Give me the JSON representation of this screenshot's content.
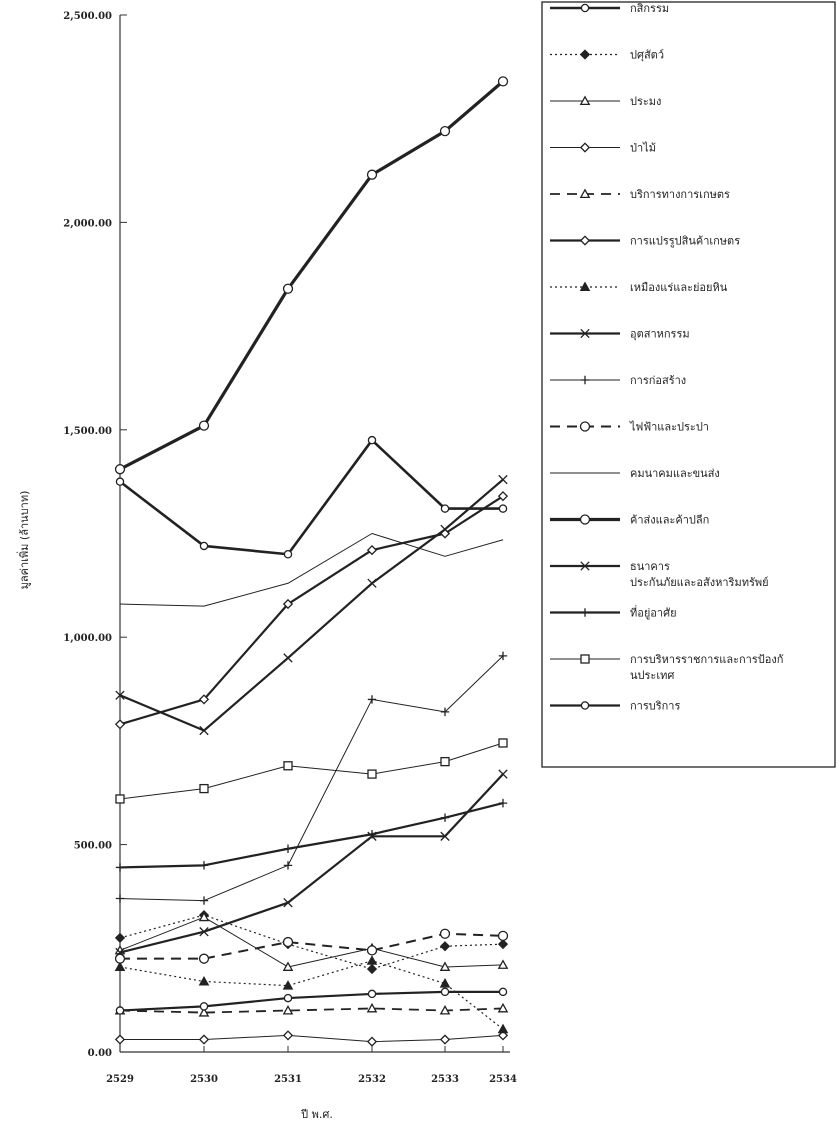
{
  "chart_data": {
    "type": "line",
    "xlabel": "ปี พ.ศ.",
    "ylabel": "มูลค่าเพิ่ม (ล้านบาท)",
    "x": [
      "2529",
      "2530",
      "2531",
      "2532",
      "2533",
      "2534"
    ],
    "ylim": [
      0,
      2500
    ],
    "y_ticks": [
      "0.00",
      "500.00",
      "1,000.00",
      "1,500.00",
      "2,000.00",
      "2,500.00"
    ],
    "grid": false,
    "legend_position": "right",
    "series": [
      {
        "name": "กสิกรรม",
        "marker": "circle-small",
        "dash": "solid",
        "width": 2.6,
        "values": [
          1375,
          1220,
          1200,
          1475,
          1310,
          1310
        ]
      },
      {
        "name": "ปศุสัตว์",
        "marker": "diamond",
        "dash": "dotted",
        "width": 1.2,
        "values": [
          275,
          330,
          260,
          200,
          255,
          260
        ]
      },
      {
        "name": "ประมง",
        "marker": "triangle-open",
        "dash": "solid",
        "width": 1.0,
        "values": [
          245,
          325,
          205,
          250,
          205,
          210
        ]
      },
      {
        "name": "ป่าไม้",
        "marker": "diamond-open",
        "dash": "solid",
        "width": 1.0,
        "values": [
          30,
          30,
          40,
          25,
          30,
          40
        ]
      },
      {
        "name": "บริการทางการเกษตร",
        "marker": "triangle-open",
        "dash": "dashed",
        "width": 1.8,
        "values": [
          100,
          95,
          100,
          105,
          100,
          105
        ]
      },
      {
        "name": "การแปรรูปสินค้าเกษตร",
        "marker": "diamond-open",
        "dash": "solid",
        "width": 2.2,
        "values": [
          790,
          850,
          1080,
          1210,
          1250,
          1340
        ]
      },
      {
        "name": "เหมืองแร่และย่อยหิน",
        "marker": "triangle-filled",
        "dash": "dotted",
        "width": 1.2,
        "values": [
          205,
          170,
          160,
          220,
          165,
          55
        ]
      },
      {
        "name": "อุตสาหกรรม",
        "marker": "cross",
        "dash": "solid",
        "width": 2.2,
        "values": [
          860,
          775,
          950,
          1130,
          1260,
          1380
        ]
      },
      {
        "name": "การก่อสร้าง",
        "marker": "plus",
        "dash": "solid",
        "width": 1.0,
        "values": [
          370,
          365,
          450,
          850,
          820,
          955
        ]
      },
      {
        "name": "ไฟฟ้าและประปา",
        "marker": "circle-open",
        "dash": "dashed",
        "width": 2.0,
        "values": [
          225,
          225,
          265,
          245,
          285,
          280
        ]
      },
      {
        "name": "คมนาคมและขนส่ง",
        "marker": "none",
        "dash": "solid",
        "width": 1.0,
        "values": [
          1080,
          1075,
          1130,
          1250,
          1195,
          1235
        ]
      },
      {
        "name": "ค้าส่งและค้าปลีก",
        "marker": "circle-open",
        "dash": "solid",
        "width": 3.2,
        "values": [
          1405,
          1510,
          1840,
          2115,
          2220,
          2340
        ]
      },
      {
        "name": "ธนาคาร ประกันภัยและอสังหาริมทรัพย์",
        "marker": "cross",
        "dash": "solid",
        "width": 2.2,
        "values": [
          240,
          290,
          360,
          520,
          520,
          670
        ]
      },
      {
        "name": "ที่อยู่อาศัย",
        "marker": "plus",
        "dash": "solid",
        "width": 2.2,
        "values": [
          445,
          450,
          490,
          525,
          565,
          600
        ]
      },
      {
        "name": "การบริหารราชการและการป้องกันประเทศ",
        "marker": "square-open",
        "dash": "solid",
        "width": 1.0,
        "values": [
          610,
          635,
          690,
          670,
          700,
          745
        ]
      },
      {
        "name": "การบริการ",
        "marker": "circle-small",
        "dash": "solid",
        "width": 2.2,
        "values": [
          100,
          110,
          130,
          140,
          145,
          145
        ]
      }
    ]
  }
}
